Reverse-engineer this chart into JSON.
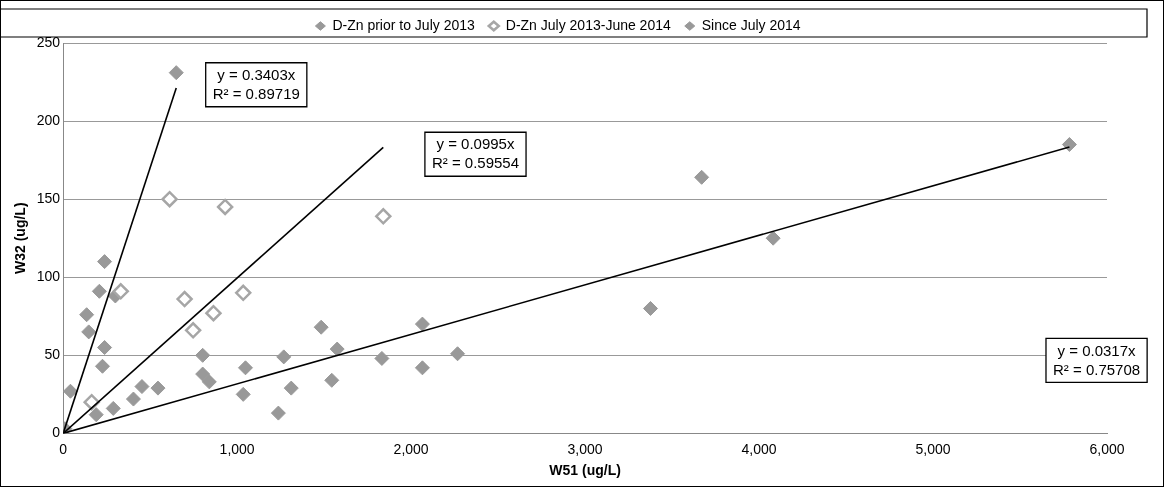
{
  "chart_data": {
    "type": "scatter",
    "xlabel": "W51 (ug/L)",
    "ylabel": "W32 (ug/L)",
    "xlim": [
      0,
      6000
    ],
    "ylim": [
      0,
      250
    ],
    "xticks": [
      0,
      {
        "value": 1000,
        "label": "1,000"
      },
      {
        "value": 2000,
        "label": "2,000"
      },
      {
        "value": 3000,
        "label": "3,000"
      },
      {
        "value": 4000,
        "label": "4,000"
      },
      {
        "value": 5000,
        "label": "5,000"
      },
      {
        "value": 6000,
        "label": "6,000"
      }
    ],
    "yticks": [
      0,
      50,
      100,
      150,
      200,
      250
    ],
    "grid": "y",
    "legend": "top",
    "marker": "diamond",
    "series": [
      {
        "name": "D-Zn prior to July 2013",
        "color": "#999999",
        "x": [
          42,
          453,
          545,
          404,
          288,
          190,
          1483,
          1575,
          1544,
          1268,
          1311,
          1237,
          1048,
          1035,
          802,
          802,
          840,
          3670,
          3376,
          2065,
          1832,
          2065,
          2267,
          4081,
          5784,
          10
        ],
        "values": [
          27,
          30,
          29,
          22,
          16,
          12,
          68,
          54,
          34,
          49,
          29,
          13,
          42,
          25,
          50,
          38,
          33,
          164,
          80,
          70,
          48,
          42,
          51,
          125,
          185,
          3
        ]
      },
      {
        "name": "D-Zn July 2013-June 2014",
        "color": "#a6a6a6",
        "marker": "diamond-open",
        "x": [
          612,
          931,
          331,
          698,
          1035,
          864,
          747,
          1840,
          164
        ],
        "values": [
          150,
          145,
          91,
          86,
          90,
          77,
          66,
          139,
          20
        ]
      },
      {
        "name": "Since July 2014",
        "color": "#999999",
        "x": [
          650,
          238,
          208,
          300,
          135,
          147,
          238,
          226
        ],
        "values": [
          231,
          110,
          91,
          88,
          76,
          65,
          55,
          43
        ]
      },
      {
        "type": "line",
        "color": "#000000",
        "marker": "none",
        "x": [
          0,
          650
        ],
        "values": [
          0,
          221.2
        ]
      },
      {
        "type": "line",
        "color": "#000000",
        "marker": "none",
        "x": [
          0,
          1840
        ],
        "values": [
          0,
          183.1
        ]
      },
      {
        "type": "line",
        "color": "#000000",
        "marker": "none",
        "x": [
          0,
          5784
        ],
        "values": [
          0,
          183.4
        ]
      }
    ],
    "annotations": [
      "y = 0.3403x\nR² = 0.89719",
      "y = 0.0995x\nR² = 0.59554",
      "y = 0.0317x\nR² = 0.75708"
    ]
  }
}
